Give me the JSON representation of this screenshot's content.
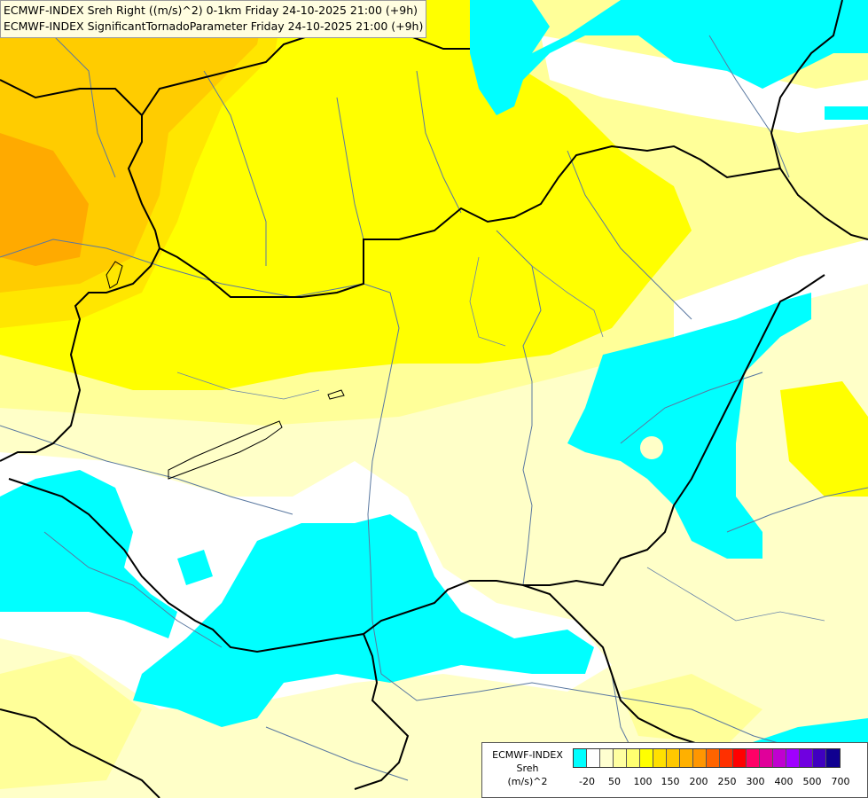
{
  "header": {
    "line1": "ECMWF-INDEX Sreh Right ((m/s)^2) 0-1km Friday 24-10-2025 21:00 (+9h)",
    "line2": "ECMWF-INDEX SignificantTornadoParameter Friday 24-10-2025 21:00 (+9h)"
  },
  "legend": {
    "title_line1": "ECMWF-INDEX",
    "title_line2": "Sreh",
    "title_line3": "(m/s)^2",
    "colors": [
      "#00ffff",
      "#ffffff",
      "#ffffd0",
      "#ffffa0",
      "#ffff70",
      "#ffff00",
      "#ffe000",
      "#ffc800",
      "#ffb000",
      "#ff9600",
      "#ff6400",
      "#ff3000",
      "#ff0000",
      "#ff0066",
      "#e0009a",
      "#c000d0",
      "#a000ff",
      "#7000e0",
      "#4000c0",
      "#100090"
    ],
    "tick_labels": [
      "-20",
      "50",
      "100",
      "150",
      "200",
      "250",
      "300",
      "400",
      "500",
      "700"
    ]
  },
  "colors": {
    "cyan": "#00ffff",
    "white": "#ffffff",
    "pale_yellow": "#ffffc8",
    "light_yellow": "#ffff99",
    "yellow": "#ffff00",
    "gold": "#ffe600",
    "orange_light": "#ffcc00",
    "orange": "#ffaa00",
    "border": "#000000",
    "river": "#5a78a0"
  }
}
